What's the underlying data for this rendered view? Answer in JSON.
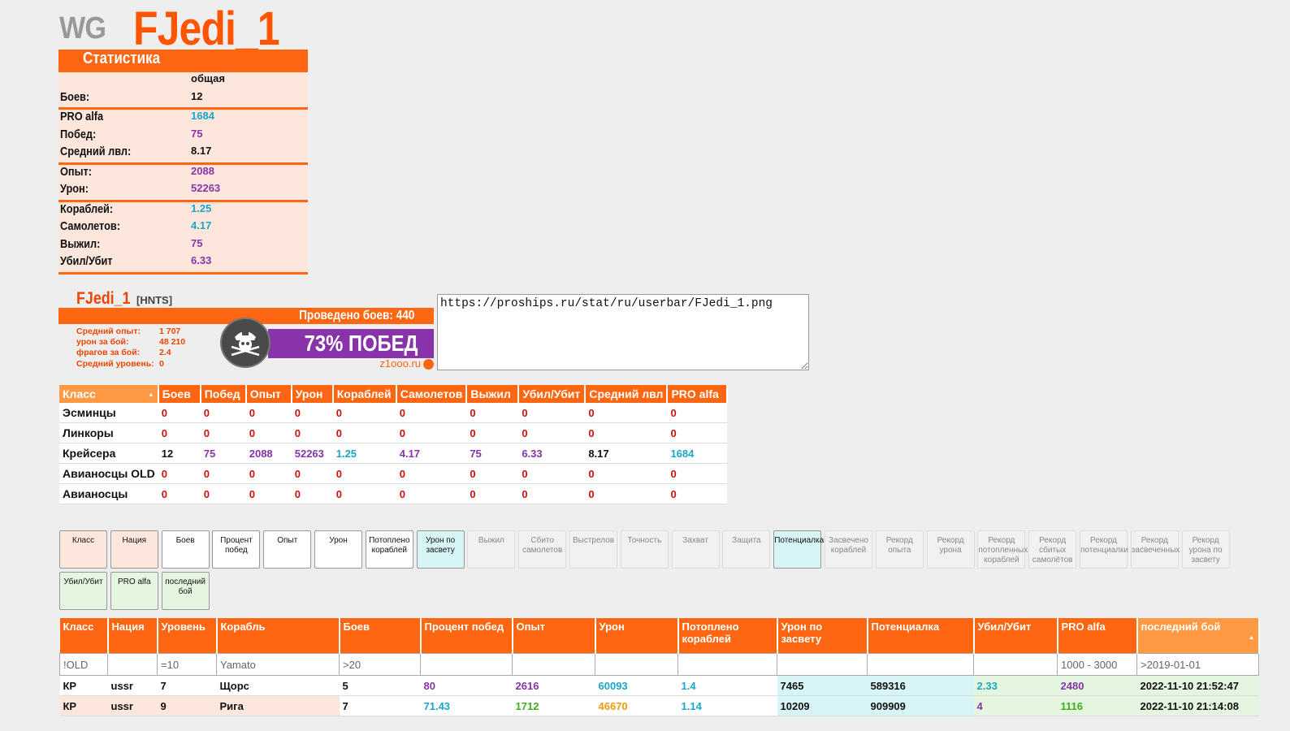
{
  "header": {
    "logo": "WG",
    "player": "FJedi_1"
  },
  "summary": {
    "title": "Статистика",
    "col_header": "общая",
    "groups": [
      [
        {
          "label": "Боев:",
          "value": "12",
          "color": "#111111"
        }
      ],
      [
        {
          "label": "PRO alfa",
          "value": "1684",
          "color": "#1aa6c8"
        },
        {
          "label": "Побед:",
          "value": "75",
          "color": "#8833aa"
        },
        {
          "label": "Средний лвл:",
          "value": "8.17",
          "color": "#111111"
        }
      ],
      [
        {
          "label": "Опыт:",
          "value": "2088",
          "color": "#8833aa"
        },
        {
          "label": "Урон:",
          "value": "52263",
          "color": "#8833aa"
        }
      ],
      [
        {
          "label": "Кораблей:",
          "value": "1.25",
          "color": "#1aa6c8"
        },
        {
          "label": "Самолетов:",
          "value": "4.17",
          "color": "#1aa6c8"
        },
        {
          "label": "Выжил:",
          "value": "75",
          "color": "#8833aa"
        },
        {
          "label": "Убил/Убит",
          "value": "6.33",
          "color": "#8833aa"
        }
      ]
    ]
  },
  "userbar": {
    "name": "FJedi_1",
    "clan": "[HNTS]",
    "battles": "Проведено боев: 440",
    "stats": [
      {
        "label": "Средний опыт:",
        "value": "1 707"
      },
      {
        "label": "урон за бой:",
        "value": "48 210"
      },
      {
        "label": "фрагов за бой:",
        "value": "2.4"
      },
      {
        "label": "Средний уровень:",
        "value": "0"
      }
    ],
    "winrate": "73% ПОБЕД",
    "site": "z1ooo.ru"
  },
  "url_box": "https://proships.ru/stat/ru/userbar/FJedi_1.png",
  "class_table": {
    "headers": [
      "Класс",
      "Боев",
      "Побед",
      "Опыт",
      "Урон",
      "Кораблей",
      "Самолетов",
      "Выжил",
      "Убил/Убит",
      "Средний лвл",
      "PRO alfa"
    ],
    "rows": [
      {
        "name": "Эсминцы",
        "values": [
          "0",
          "0",
          "0",
          "0",
          "0",
          "0",
          "0",
          "0",
          "0",
          "0"
        ],
        "colors": [
          "#cc1111",
          "#cc1111",
          "#cc1111",
          "#cc1111",
          "#cc1111",
          "#cc1111",
          "#cc1111",
          "#cc1111",
          "#cc1111",
          "#cc1111"
        ]
      },
      {
        "name": "Линкоры",
        "values": [
          "0",
          "0",
          "0",
          "0",
          "0",
          "0",
          "0",
          "0",
          "0",
          "0"
        ],
        "colors": [
          "#cc1111",
          "#cc1111",
          "#cc1111",
          "#cc1111",
          "#cc1111",
          "#cc1111",
          "#cc1111",
          "#cc1111",
          "#cc1111",
          "#cc1111"
        ]
      },
      {
        "name": "Крейсера",
        "values": [
          "12",
          "75",
          "2088",
          "52263",
          "1.25",
          "4.17",
          "75",
          "6.33",
          "8.17",
          "1684"
        ],
        "colors": [
          "#111111",
          "#8833aa",
          "#8833aa",
          "#8833aa",
          "#1aa6c8",
          "#8833aa",
          "#8833aa",
          "#8833aa",
          "#111111",
          "#1aa6c8"
        ]
      },
      {
        "name": "Авианосцы OLD",
        "values": [
          "0",
          "0",
          "0",
          "0",
          "0",
          "0",
          "0",
          "0",
          "0",
          "0"
        ],
        "colors": [
          "#cc1111",
          "#cc1111",
          "#cc1111",
          "#cc1111",
          "#cc1111",
          "#cc1111",
          "#cc1111",
          "#cc1111",
          "#cc1111",
          "#cc1111"
        ]
      },
      {
        "name": "Авианосцы",
        "values": [
          "0",
          "0",
          "0",
          "0",
          "0",
          "0",
          "0",
          "0",
          "0",
          "0"
        ],
        "colors": [
          "#cc1111",
          "#cc1111",
          "#cc1111",
          "#cc1111",
          "#cc1111",
          "#cc1111",
          "#cc1111",
          "#cc1111",
          "#cc1111",
          "#cc1111"
        ]
      }
    ]
  },
  "toggles": [
    {
      "label": "Класс",
      "state": "pink"
    },
    {
      "label": "Нация",
      "state": "pink"
    },
    {
      "label": "Боев",
      "state": "white"
    },
    {
      "label": "Процент побед",
      "state": "white"
    },
    {
      "label": "Опыт",
      "state": "white"
    },
    {
      "label": "Урон",
      "state": "white"
    },
    {
      "label": "Потоплено кораблей",
      "state": "white"
    },
    {
      "label": "Урон по засвету",
      "state": "cyan"
    },
    {
      "label": "Выжил",
      "state": "off"
    },
    {
      "label": "Сбито самолетов",
      "state": "off"
    },
    {
      "label": "Выстрелов",
      "state": "off"
    },
    {
      "label": "Точность",
      "state": "off"
    },
    {
      "label": "Захват",
      "state": "off"
    },
    {
      "label": "Защита",
      "state": "off"
    },
    {
      "label": "Потенциалка",
      "state": "cyan"
    },
    {
      "label": "Засвечено кораблей",
      "state": "off"
    },
    {
      "label": "Рекорд опыта",
      "state": "off"
    },
    {
      "label": "Рекорд урона",
      "state": "off"
    },
    {
      "label": "Рекорд потопленных кораблей",
      "state": "off"
    },
    {
      "label": "Рекорд сбитых самолётов",
      "state": "off"
    },
    {
      "label": "Рекорд потенциалки",
      "state": "off"
    },
    {
      "label": "Рекорд засвеченных",
      "state": "off"
    },
    {
      "label": "Рекорд урона по засвету",
      "state": "off"
    },
    {
      "label": "Убил/Убит",
      "state": "green"
    },
    {
      "label": "PRO alfa",
      "state": "green"
    },
    {
      "label": "последний бой",
      "state": "green"
    }
  ],
  "main_table": {
    "headers": [
      "Класс",
      "Нация",
      "Уровень",
      "Корабль",
      "Боев",
      "Процент побед",
      "Опыт",
      "Урон",
      "Потоплено кораблей",
      "Урон по засвету",
      "Потенциалка",
      "Убил/Убит",
      "PRO alfa",
      "последний бой"
    ],
    "filters": [
      "!OLD",
      "",
      "=10",
      "Yamato",
      ">20",
      "",
      "",
      "",
      "",
      "",
      "",
      "",
      "1000 - 3000",
      ">2019-01-01"
    ],
    "rows": [
      {
        "values": [
          "КР",
          "ussr",
          "7",
          "Щорс",
          "5",
          "80",
          "2616",
          "60093",
          "1.4",
          "7465",
          "589316",
          "2.33",
          "2480",
          "2022-11-10 21:52:47"
        ],
        "colors": [
          "#111111",
          "#111111",
          "#111111",
          "#111111",
          "#111111",
          "#8833aa",
          "#8833aa",
          "#1aa6c8",
          "#1aa6c8",
          "#111111",
          "#111111",
          "#1aa6c8",
          "#8833aa",
          "#111111"
        ]
      },
      {
        "values": [
          "КР",
          "ussr",
          "9",
          "Рига",
          "7",
          "71.43",
          "1712",
          "46670",
          "1.14",
          "10209",
          "909909",
          "4",
          "1116",
          "2022-11-10 21:14:08"
        ],
        "colors": [
          "#111111",
          "#111111",
          "#111111",
          "#111111",
          "#111111",
          "#1aa6c8",
          "#44aa22",
          "#ee9911",
          "#1aa6c8",
          "#111111",
          "#111111",
          "#8833aa",
          "#44aa22",
          "#111111"
        ]
      }
    ]
  }
}
